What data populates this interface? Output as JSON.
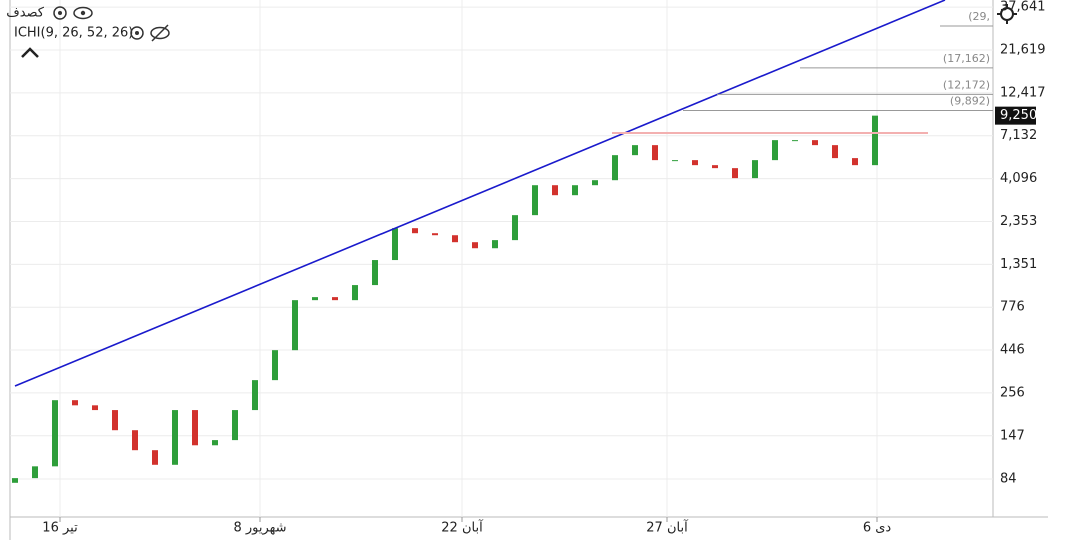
{
  "chart_data": {
    "type": "candlestick",
    "title": "کصدف",
    "indicator": "ICHI(9, 26, 52, 26)",
    "log_scale": true,
    "grid": true,
    "up_color": "#2e9e3a",
    "down_color": "#d2322d",
    "open": [
      80,
      85,
      99,
      233,
      218,
      205,
      158,
      122,
      101,
      205,
      130,
      139,
      205,
      302,
      445,
      850,
      884,
      850,
      1033,
      1428,
      2157,
      2021,
      1969,
      1799,
      1664,
      1848,
      2553,
      3761,
      3305,
      3761,
      4013,
      5548,
      6316,
      5202,
      5202,
      4875,
      4690,
      4122,
      5202,
      6738,
      6738,
      6316,
      5340,
      4875
    ],
    "close": [
      85,
      99,
      233,
      218,
      205,
      158,
      122,
      101,
      205,
      130,
      139,
      205,
      302,
      445,
      850,
      884,
      850,
      1033,
      1428,
      2157,
      2021,
      1969,
      1799,
      1664,
      1848,
      2553,
      3761,
      3305,
      3761,
      4013,
      5548,
      6316,
      5202,
      5202,
      4875,
      4690,
      4122,
      5202,
      6738,
      6738,
      6316,
      5340,
      4875,
      9250
    ],
    "xlim": [
      -0.25,
      48.9
    ],
    "xticks": [
      {
        "value": 2.25,
        "label": "16 تیر"
      },
      {
        "value": 12.25,
        "label": "8 شهریور"
      },
      {
        "value": 22.35,
        "label": "22 آبان"
      },
      {
        "value": 32.6,
        "label": "27 آبان"
      },
      {
        "value": 43.1,
        "label": "6 دی"
      }
    ],
    "ylim": [
      51.4,
      41300
    ],
    "yticks": [
      {
        "value": 84,
        "label": "84"
      },
      {
        "value": 147,
        "label": "147"
      },
      {
        "value": 256,
        "label": "256"
      },
      {
        "value": 446,
        "label": "446"
      },
      {
        "value": 776,
        "label": "776"
      },
      {
        "value": 1351,
        "label": "1,351"
      },
      {
        "value": 2353,
        "label": "2,353"
      },
      {
        "value": 4096,
        "label": "4,096"
      },
      {
        "value": 7132,
        "label": "7,132"
      },
      {
        "value": 12417,
        "label": "12,417"
      },
      {
        "value": 21619,
        "label": "21,619"
      },
      {
        "value": 37641,
        "label": "37,641"
      }
    ],
    "levels": [
      {
        "value": 29500,
        "label": "(29,",
        "start": 46.25
      },
      {
        "value": 17162,
        "label": "(17,162)",
        "start": 39.25
      },
      {
        "value": 12172,
        "label": "(12,172)",
        "start": 35.1
      },
      {
        "value": 9892,
        "label": "(9,892)",
        "start": 33.4
      }
    ],
    "price_tag": {
      "value": 9250,
      "label": "9,250"
    }
  }
}
